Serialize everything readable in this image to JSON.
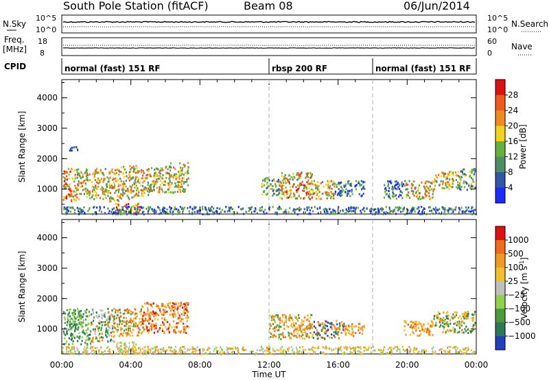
{
  "header": {
    "station": "South Pole Station (fitACF)",
    "beam": "Beam 08",
    "date": "06/Jun/2014"
  },
  "side_labels": {
    "nsky": "N.Sky",
    "freq_l1": "Freq.",
    "freq_l2": "[MHz]",
    "cpid": "CPID",
    "nsearch": "N.Search",
    "nave": "Nave"
  },
  "axis_ticks": {
    "nsky_top": "10^5",
    "nsky_bot": "10^0",
    "nsearch_top": "10^5",
    "nsearch_bot": "10^0",
    "freq_top": "18",
    "freq_bot": "8",
    "nave_top": "60",
    "nave_bot": "0"
  },
  "cpid_segments": [
    {
      "label": "normal (fast) 151 RF",
      "start": 0,
      "end": 12
    },
    {
      "label": "rbsp 200 RF",
      "start": 12,
      "end": 18
    },
    {
      "label": "normal (fast) 151 RF",
      "start": 18,
      "end": 24
    }
  ],
  "chart_data": [
    {
      "type": "heatmap",
      "title": "",
      "xlabel": "Time UT",
      "ylabel": "Slant Range [km]",
      "x_ticks": [
        "00:00",
        "04:00",
        "08:00",
        "12:00",
        "16:00",
        "20:00",
        "00:00"
      ],
      "xlim_hours": [
        0,
        24
      ],
      "y_ticks": [
        1000,
        2000,
        3000,
        4000
      ],
      "ylim": [
        180,
        4600
      ],
      "colorbar": {
        "label": "Power [dB]",
        "ticks": [
          "4",
          "8",
          "12",
          "16",
          "20",
          "24",
          "28"
        ],
        "colors": [
          "#1a2bff",
          "#2f59a6",
          "#4b8f62",
          "#62b338",
          "#f2d21a",
          "#f28a1e",
          "#f05a1a",
          "#e01010"
        ]
      },
      "dashed_lines_hours": [
        12,
        18
      ]
    },
    {
      "type": "heatmap",
      "title": "",
      "xlabel": "Time UT",
      "ylabel": "Slant Range [km]",
      "x_ticks": [
        "00:00",
        "04:00",
        "08:00",
        "12:00",
        "16:00",
        "20:00",
        "00:00"
      ],
      "xlim_hours": [
        0,
        24
      ],
      "y_ticks": [
        1000,
        2000,
        3000,
        4000
      ],
      "ylim": [
        180,
        4600
      ],
      "colorbar": {
        "label": "Velocity [m s",
        "label_sup": "-1",
        "label_close": "]",
        "ticks": [
          "1000",
          "500",
          "100",
          "25",
          "−25",
          "−100",
          "−500",
          "−1000"
        ],
        "colors": [
          "#2040c0",
          "#2a7a5a",
          "#4c9a3a",
          "#8fd24a",
          "#c0c0c0",
          "#f2c02a",
          "#f09a20",
          "#f06a18",
          "#e01010"
        ]
      },
      "dashed_lines_hours": [
        12,
        18
      ]
    }
  ],
  "scatter_regions": {
    "power": [
      {
        "t0": 0.05,
        "t1": 0.8,
        "r0": 600,
        "r1": 1700,
        "c": [
          7,
          6,
          5,
          4,
          3
        ]
      },
      {
        "t0": 0.8,
        "t1": 1.6,
        "r0": 700,
        "r1": 1700,
        "c": [
          6,
          5,
          4,
          3,
          2
        ]
      },
      {
        "t0": 1.7,
        "t1": 2.5,
        "r0": 700,
        "r1": 1700,
        "c": [
          5,
          4,
          3,
          2,
          6
        ]
      },
      {
        "t0": 2.5,
        "t1": 3.4,
        "r0": 600,
        "r1": 1700,
        "c": [
          6,
          5,
          4,
          3,
          2
        ]
      },
      {
        "t0": 3.4,
        "t1": 4.3,
        "r0": 700,
        "r1": 1800,
        "c": [
          5,
          4,
          6,
          3,
          2
        ]
      },
      {
        "t0": 4.3,
        "t1": 5.0,
        "r0": 800,
        "r1": 1700,
        "c": [
          4,
          5,
          3,
          2,
          6
        ]
      },
      {
        "t0": 5.0,
        "t1": 6.2,
        "r0": 900,
        "r1": 1800,
        "c": [
          5,
          6,
          4,
          3,
          2
        ]
      },
      {
        "t0": 6.2,
        "t1": 7.3,
        "r0": 900,
        "r1": 1900,
        "c": [
          4,
          5,
          3,
          6,
          2
        ]
      },
      {
        "t0": 3.0,
        "t1": 4.5,
        "r0": 200,
        "r1": 550,
        "c": [
          7,
          6,
          5,
          4
        ]
      },
      {
        "t0": 0.4,
        "t1": 0.9,
        "r0": 2200,
        "r1": 2450,
        "c": [
          1,
          0
        ]
      },
      {
        "t0": 11.5,
        "t1": 12.6,
        "r0": 800,
        "r1": 1400,
        "c": [
          1,
          2,
          3,
          4
        ]
      },
      {
        "t0": 12.6,
        "t1": 14.5,
        "r0": 700,
        "r1": 1600,
        "c": [
          5,
          6,
          4,
          3,
          7,
          2
        ]
      },
      {
        "t0": 14.5,
        "t1": 15.8,
        "r0": 700,
        "r1": 1300,
        "c": [
          4,
          5,
          6,
          3,
          2
        ]
      },
      {
        "t0": 15.8,
        "t1": 17.5,
        "r0": 800,
        "r1": 1300,
        "c": [
          3,
          2,
          1,
          0
        ]
      },
      {
        "t0": 18.6,
        "t1": 19.8,
        "r0": 700,
        "r1": 1300,
        "c": [
          1,
          2,
          3,
          0
        ]
      },
      {
        "t0": 19.8,
        "t1": 21.5,
        "r0": 700,
        "r1": 1300,
        "c": [
          3,
          4,
          5,
          6,
          2
        ]
      },
      {
        "t0": 21.5,
        "t1": 23.0,
        "r0": 1000,
        "r1": 1600,
        "c": [
          3,
          4,
          5,
          2,
          6
        ]
      },
      {
        "t0": 23.0,
        "t1": 23.9,
        "r0": 1000,
        "r1": 1700,
        "c": [
          2,
          3,
          1,
          4
        ]
      },
      {
        "t0": 0.0,
        "t1": 24.0,
        "r0": 200,
        "r1": 450,
        "c": [
          0,
          1,
          2,
          3
        ]
      }
    ],
    "velocity": [
      {
        "t0": 0.05,
        "t1": 1.7,
        "r0": 500,
        "r1": 1700,
        "c": [
          2,
          1,
          3
        ]
      },
      {
        "t0": 1.7,
        "t1": 3.0,
        "r0": 600,
        "r1": 1700,
        "c": [
          2,
          1,
          4,
          6
        ]
      },
      {
        "t0": 3.0,
        "t1": 4.6,
        "r0": 800,
        "r1": 1700,
        "c": [
          6,
          7,
          5,
          2
        ]
      },
      {
        "t0": 4.6,
        "t1": 7.3,
        "r0": 900,
        "r1": 1900,
        "c": [
          7,
          6,
          5,
          8
        ]
      },
      {
        "t0": 3.1,
        "t1": 4.3,
        "r0": 200,
        "r1": 600,
        "c": [
          4,
          5,
          3
        ]
      },
      {
        "t0": 12.0,
        "t1": 14.5,
        "r0": 700,
        "r1": 1500,
        "c": [
          7,
          6,
          5,
          2
        ]
      },
      {
        "t0": 14.5,
        "t1": 16.3,
        "r0": 700,
        "r1": 1300,
        "c": [
          2,
          1,
          6,
          7,
          0
        ]
      },
      {
        "t0": 16.3,
        "t1": 17.5,
        "r0": 800,
        "r1": 1200,
        "c": [
          6,
          5,
          7
        ]
      },
      {
        "t0": 19.8,
        "t1": 21.5,
        "r0": 800,
        "r1": 1300,
        "c": [
          6,
          5,
          7
        ]
      },
      {
        "t0": 21.5,
        "t1": 23.9,
        "r0": 900,
        "r1": 1600,
        "c": [
          2,
          6,
          5,
          1
        ]
      },
      {
        "t0": 0.0,
        "t1": 24.0,
        "r0": 200,
        "r1": 450,
        "c": [
          5,
          6,
          4,
          3
        ]
      }
    ]
  }
}
